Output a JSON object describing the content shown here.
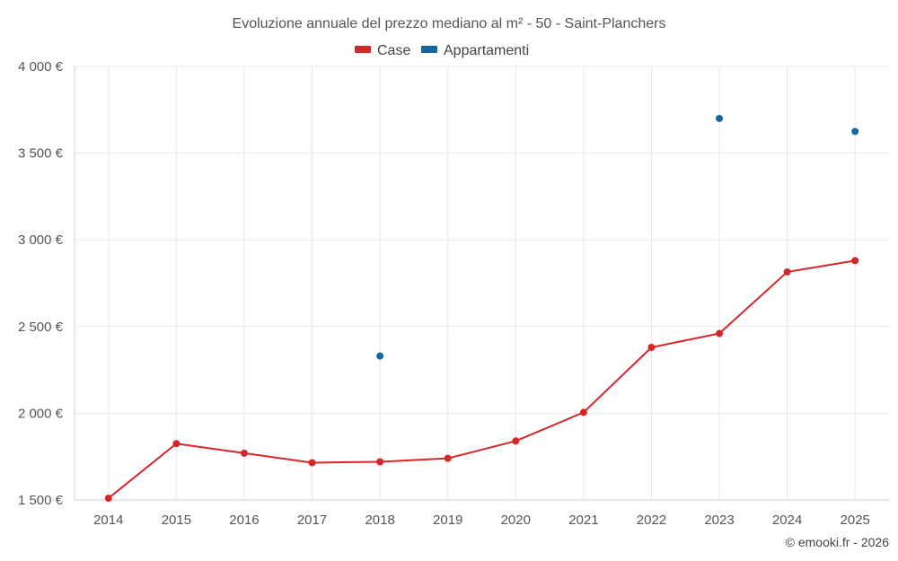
{
  "chart_data": {
    "type": "line",
    "title": "Evoluzione annuale del prezzo mediano al m² - 50 - Saint-Planchers",
    "categories": [
      "2014",
      "2015",
      "2016",
      "2017",
      "2018",
      "2019",
      "2020",
      "2021",
      "2022",
      "2023",
      "2024",
      "2025"
    ],
    "ylim": [
      1500,
      4000
    ],
    "yticks": [
      1500,
      2000,
      2500,
      3000,
      3500,
      4000
    ],
    "ytick_labels": [
      "1 500 €",
      "2 000 €",
      "2 500 €",
      "3 000 €",
      "3 500 €",
      "4 000 €"
    ],
    "grid": true,
    "legend_position": "top-center",
    "series": [
      {
        "name": "Case",
        "color": "#d62728",
        "line": true,
        "values": [
          1510,
          1825,
          1770,
          1715,
          1720,
          1740,
          1840,
          2005,
          2380,
          2460,
          2815,
          2880
        ]
      },
      {
        "name": "Appartamenti",
        "color": "#1565a0",
        "line": false,
        "values": [
          null,
          null,
          null,
          null,
          2330,
          null,
          null,
          null,
          null,
          3700,
          null,
          3625
        ]
      }
    ],
    "credit": "© emooki.fr - 2026"
  }
}
